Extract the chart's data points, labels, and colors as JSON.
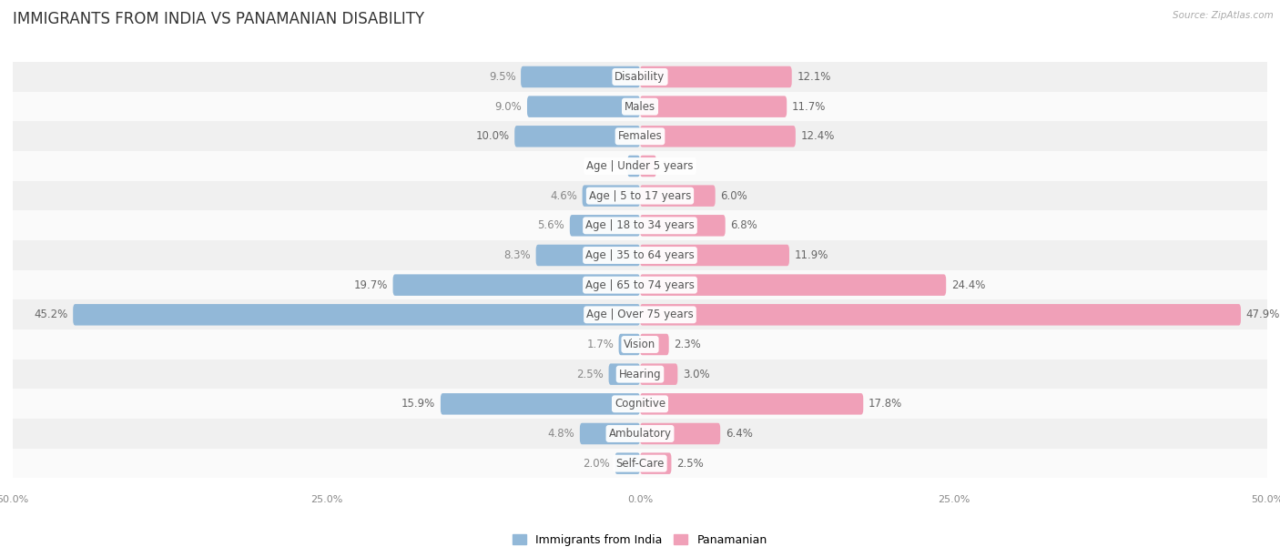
{
  "title": "IMMIGRANTS FROM INDIA VS PANAMANIAN DISABILITY",
  "source": "Source: ZipAtlas.com",
  "categories": [
    "Disability",
    "Males",
    "Females",
    "Age | Under 5 years",
    "Age | 5 to 17 years",
    "Age | 18 to 34 years",
    "Age | 35 to 64 years",
    "Age | 65 to 74 years",
    "Age | Over 75 years",
    "Vision",
    "Hearing",
    "Cognitive",
    "Ambulatory",
    "Self-Care"
  ],
  "india_values": [
    9.5,
    9.0,
    10.0,
    1.0,
    4.6,
    5.6,
    8.3,
    19.7,
    45.2,
    1.7,
    2.5,
    15.9,
    4.8,
    2.0
  ],
  "panama_values": [
    12.1,
    11.7,
    12.4,
    1.3,
    6.0,
    6.8,
    11.9,
    24.4,
    47.9,
    2.3,
    3.0,
    17.8,
    6.4,
    2.5
  ],
  "india_color": "#92b8d8",
  "panama_color": "#f0a0b8",
  "india_label": "Immigrants from India",
  "panama_label": "Panamanian",
  "axis_max": 50.0,
  "bg_color": "#ffffff",
  "row_colors": [
    "#f0f0f0",
    "#fafafa"
  ],
  "title_fontsize": 12,
  "value_fontsize": 8.5,
  "category_fontsize": 8.5,
  "legend_fontsize": 9
}
